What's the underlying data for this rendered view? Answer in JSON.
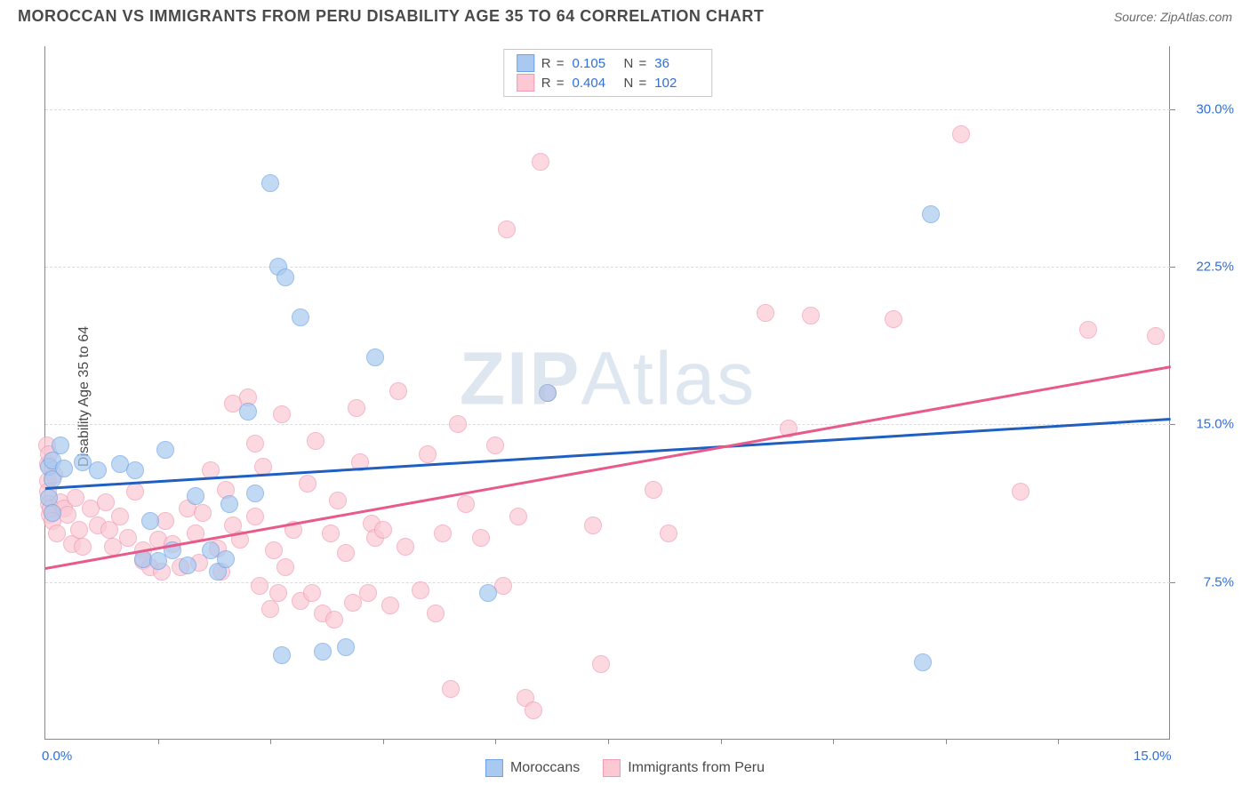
{
  "header": {
    "title": "MOROCCAN VS IMMIGRANTS FROM PERU DISABILITY AGE 35 TO 64 CORRELATION CHART",
    "source": "Source: ZipAtlas.com"
  },
  "watermark": {
    "zip": "ZIP",
    "atlas": "Atlas"
  },
  "chart": {
    "type": "scatter",
    "y_axis_title": "Disability Age 35 to 64",
    "xlim": [
      0,
      15
    ],
    "ylim": [
      0,
      33
    ],
    "xtick_labels": {
      "0": "0.0%",
      "15": "15.0%"
    },
    "xtick_marks": [
      1.5,
      3.0,
      4.5,
      6.0,
      7.5,
      9.0,
      10.5,
      12.0,
      13.5
    ],
    "yticks": [
      7.5,
      15.0,
      22.5,
      30.0
    ],
    "ytick_labels": [
      "7.5%",
      "15.0%",
      "22.5%",
      "30.0%"
    ],
    "background_color": "#ffffff",
    "grid_color": "#dcdcdc",
    "axis_color": "#888888",
    "tick_label_color": "#2f6fd6",
    "marker_radius": 10,
    "marker_fill_opacity": 0.35,
    "marker_stroke_width": 1.5,
    "series": [
      {
        "id": "moroccans",
        "label": "Moroccans",
        "R_label": "R =",
        "R_value": "0.105",
        "N_label": "N =",
        "N_value": "36",
        "color_stroke": "#6da3e6",
        "color_fill": "#a9c9f0",
        "trend_color": "#1e5fc1",
        "trend": {
          "x0": 0,
          "y0": 12.0,
          "x1": 15,
          "y1": 15.3
        },
        "points": [
          [
            0.05,
            13.0
          ],
          [
            0.05,
            11.5
          ],
          [
            0.1,
            13.3
          ],
          [
            0.1,
            12.4
          ],
          [
            0.1,
            10.8
          ],
          [
            0.2,
            14.0
          ],
          [
            0.25,
            12.9
          ],
          [
            0.5,
            13.2
          ],
          [
            0.7,
            12.8
          ],
          [
            1.0,
            13.1
          ],
          [
            1.2,
            12.8
          ],
          [
            1.3,
            8.6
          ],
          [
            1.4,
            10.4
          ],
          [
            1.5,
            8.5
          ],
          [
            1.6,
            13.8
          ],
          [
            1.7,
            9.0
          ],
          [
            1.9,
            8.3
          ],
          [
            2.0,
            11.6
          ],
          [
            2.2,
            9.0
          ],
          [
            2.3,
            8.0
          ],
          [
            2.4,
            8.6
          ],
          [
            2.45,
            11.2
          ],
          [
            2.7,
            15.6
          ],
          [
            2.8,
            11.7
          ],
          [
            3.0,
            26.5
          ],
          [
            3.1,
            22.5
          ],
          [
            3.2,
            22.0
          ],
          [
            3.15,
            4.0
          ],
          [
            3.4,
            20.1
          ],
          [
            3.7,
            4.2
          ],
          [
            4.0,
            4.4
          ],
          [
            4.4,
            18.2
          ],
          [
            5.9,
            7.0
          ],
          [
            11.8,
            25.0
          ],
          [
            11.7,
            3.7
          ],
          [
            6.7,
            16.5
          ]
        ]
      },
      {
        "id": "peru",
        "label": "Immigrants from Peru",
        "R_label": "R =",
        "R_value": "0.404",
        "N_label": "N =",
        "N_value": "102",
        "color_stroke": "#f29bb2",
        "color_fill": "#fbc8d4",
        "trend_color": "#e85a8a",
        "trend": {
          "x0": 0,
          "y0": 8.2,
          "x1": 15,
          "y1": 17.8
        },
        "points": [
          [
            0.02,
            14.0
          ],
          [
            0.03,
            13.1
          ],
          [
            0.03,
            12.3
          ],
          [
            0.04,
            11.8
          ],
          [
            0.05,
            11.2
          ],
          [
            0.05,
            13.6
          ],
          [
            0.06,
            10.7
          ],
          [
            0.07,
            11.0
          ],
          [
            0.1,
            10.4
          ],
          [
            0.12,
            12.6
          ],
          [
            0.15,
            9.8
          ],
          [
            0.2,
            11.3
          ],
          [
            0.25,
            11.0
          ],
          [
            0.3,
            10.7
          ],
          [
            0.35,
            9.3
          ],
          [
            0.4,
            11.5
          ],
          [
            0.45,
            10.0
          ],
          [
            0.5,
            9.2
          ],
          [
            0.6,
            11.0
          ],
          [
            0.7,
            10.2
          ],
          [
            0.8,
            11.3
          ],
          [
            0.85,
            10.0
          ],
          [
            0.9,
            9.2
          ],
          [
            1.0,
            10.6
          ],
          [
            1.1,
            9.6
          ],
          [
            1.2,
            11.8
          ],
          [
            1.3,
            9.0
          ],
          [
            1.3,
            8.5
          ],
          [
            1.4,
            8.2
          ],
          [
            1.5,
            9.5
          ],
          [
            1.55,
            8.0
          ],
          [
            1.6,
            10.4
          ],
          [
            1.7,
            9.3
          ],
          [
            1.8,
            8.2
          ],
          [
            1.9,
            11.0
          ],
          [
            2.0,
            9.8
          ],
          [
            2.05,
            8.4
          ],
          [
            2.1,
            10.8
          ],
          [
            2.2,
            12.8
          ],
          [
            2.3,
            9.1
          ],
          [
            2.35,
            8.0
          ],
          [
            2.4,
            11.9
          ],
          [
            2.5,
            10.2
          ],
          [
            2.5,
            16.0
          ],
          [
            2.6,
            9.5
          ],
          [
            2.7,
            16.3
          ],
          [
            2.8,
            10.6
          ],
          [
            2.8,
            14.1
          ],
          [
            2.85,
            7.3
          ],
          [
            2.9,
            13.0
          ],
          [
            3.0,
            6.2
          ],
          [
            3.05,
            9.0
          ],
          [
            3.1,
            7.0
          ],
          [
            3.15,
            15.5
          ],
          [
            3.2,
            8.2
          ],
          [
            3.3,
            10.0
          ],
          [
            3.4,
            6.6
          ],
          [
            3.5,
            12.2
          ],
          [
            3.55,
            7.0
          ],
          [
            3.6,
            14.2
          ],
          [
            3.7,
            6.0
          ],
          [
            3.8,
            9.8
          ],
          [
            3.85,
            5.7
          ],
          [
            3.9,
            11.4
          ],
          [
            4.0,
            8.9
          ],
          [
            4.1,
            6.5
          ],
          [
            4.15,
            15.8
          ],
          [
            4.2,
            13.2
          ],
          [
            4.3,
            7.0
          ],
          [
            4.35,
            10.3
          ],
          [
            4.4,
            9.6
          ],
          [
            4.5,
            10.0
          ],
          [
            4.6,
            6.4
          ],
          [
            4.7,
            16.6
          ],
          [
            4.8,
            9.2
          ],
          [
            5.0,
            7.1
          ],
          [
            5.1,
            13.6
          ],
          [
            5.2,
            6.0
          ],
          [
            5.3,
            9.8
          ],
          [
            5.4,
            2.4
          ],
          [
            5.5,
            15.0
          ],
          [
            5.6,
            11.2
          ],
          [
            5.8,
            9.6
          ],
          [
            6.0,
            14.0
          ],
          [
            6.1,
            7.3
          ],
          [
            6.15,
            24.3
          ],
          [
            6.3,
            10.6
          ],
          [
            6.4,
            2.0
          ],
          [
            6.5,
            1.4
          ],
          [
            6.6,
            27.5
          ],
          [
            6.7,
            16.5
          ],
          [
            7.3,
            10.2
          ],
          [
            7.4,
            3.6
          ],
          [
            8.1,
            11.9
          ],
          [
            8.3,
            9.8
          ],
          [
            9.6,
            20.3
          ],
          [
            9.9,
            14.8
          ],
          [
            10.2,
            20.2
          ],
          [
            11.3,
            20.0
          ],
          [
            12.2,
            28.8
          ],
          [
            13.0,
            11.8
          ],
          [
            13.9,
            19.5
          ],
          [
            14.8,
            19.2
          ]
        ]
      }
    ],
    "legend_bottom": [
      {
        "ref": 0
      },
      {
        "ref": 1
      }
    ]
  }
}
